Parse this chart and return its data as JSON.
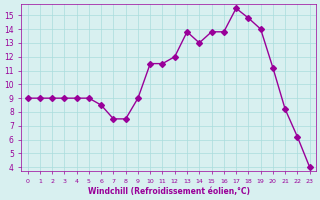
{
  "x": [
    0,
    1,
    2,
    3,
    4,
    5,
    6,
    7,
    8,
    9,
    10,
    11,
    12,
    13,
    14,
    15,
    16,
    17,
    18,
    19,
    20,
    21,
    22,
    23
  ],
  "y": [
    9,
    9,
    9,
    9,
    9,
    9,
    8.5,
    7.5,
    7.5,
    9,
    11.5,
    11.5,
    12,
    13.8,
    13,
    13.8,
    13.8,
    15.5,
    14.8,
    14,
    11.2,
    8.2,
    6.2,
    4
  ],
  "line_color": "#990099",
  "marker": "D",
  "marker_size": 3,
  "bg_color": "#d8f0f0",
  "grid_color": "#aadddd",
  "xlabel": "Windchill (Refroidissement éolien,°C)",
  "ylim": [
    4,
    15.5
  ],
  "xlim": [
    0,
    23
  ],
  "yticks": [
    4,
    5,
    6,
    7,
    8,
    9,
    10,
    11,
    12,
    13,
    14,
    15
  ],
  "xticks": [
    0,
    1,
    2,
    3,
    4,
    5,
    6,
    7,
    8,
    9,
    10,
    11,
    12,
    13,
    14,
    15,
    16,
    17,
    18,
    19,
    20,
    21,
    22,
    23
  ],
  "label_color": "#990099",
  "tick_color": "#990099"
}
